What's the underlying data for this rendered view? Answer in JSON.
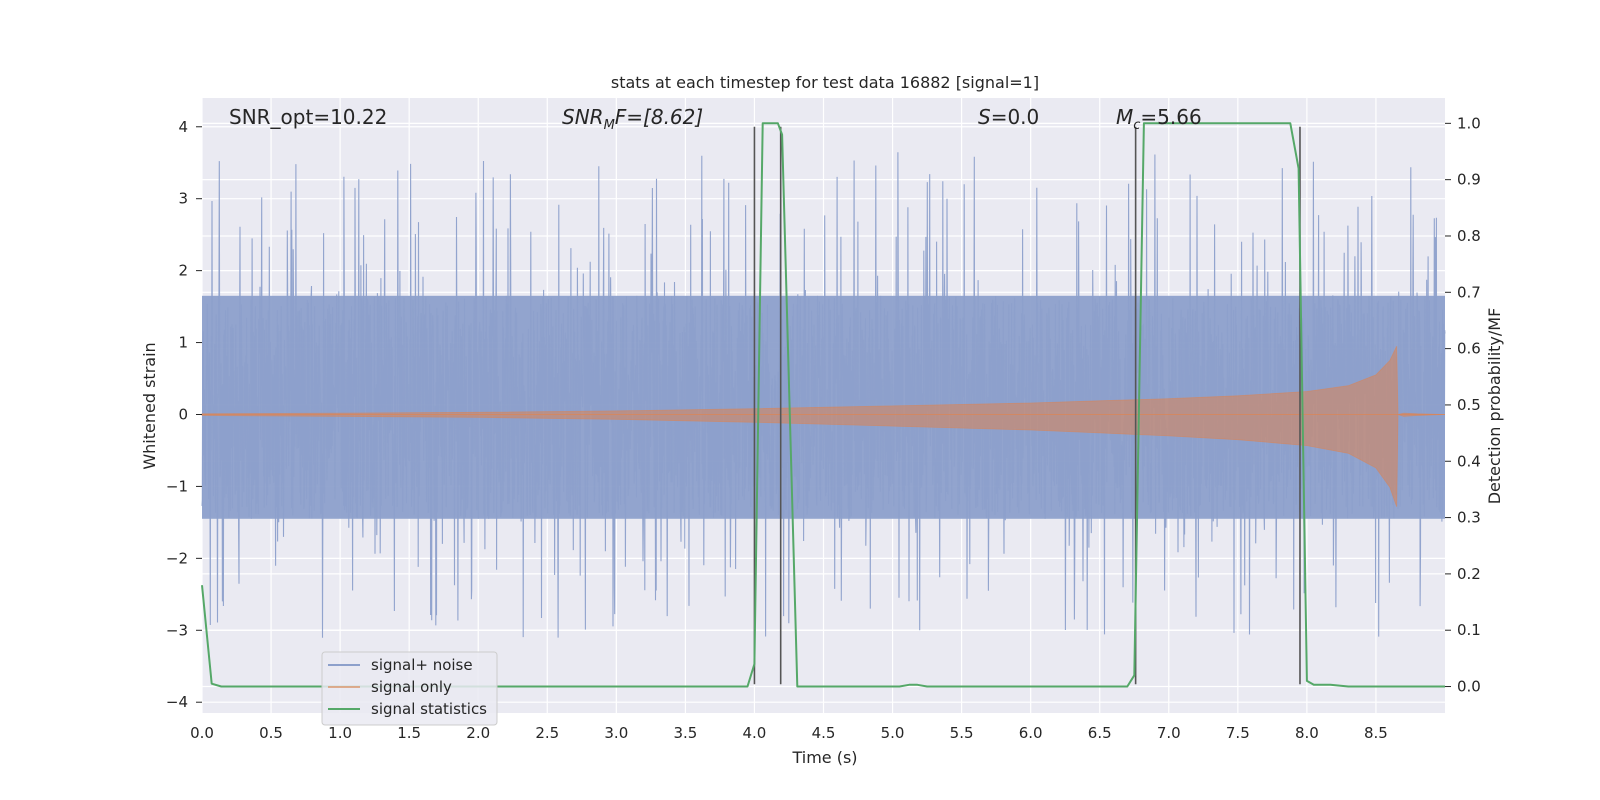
{
  "chart_data": {
    "type": "line",
    "title": "stats at each timestep for test data 16882 [signal=1]",
    "xlabel": "Time (s)",
    "ylabel_left": "Whitened strain",
    "ylabel_right": "Detection probability/MF",
    "xlim": [
      0.0,
      9.0
    ],
    "ylim_left": [
      -4.15,
      4.4
    ],
    "ylim_right": [
      -0.047,
      1.045
    ],
    "xticks": [
      0.0,
      0.5,
      1.0,
      1.5,
      2.0,
      2.5,
      3.0,
      3.5,
      4.0,
      4.5,
      5.0,
      5.5,
      6.0,
      6.5,
      7.0,
      7.5,
      8.0,
      8.5
    ],
    "yticks_left": [
      -4,
      -3,
      -2,
      -1,
      0,
      1,
      2,
      3,
      4
    ],
    "yticks_right": [
      0.0,
      0.1,
      0.2,
      0.3,
      0.4,
      0.5,
      0.6,
      0.7,
      0.8,
      0.9,
      1.0
    ],
    "tick_labels_x": [
      "0.0",
      "0.5",
      "1.0",
      "1.5",
      "2.0",
      "2.5",
      "3.0",
      "3.5",
      "4.0",
      "4.5",
      "5.0",
      "5.5",
      "6.0",
      "6.5",
      "7.0",
      "7.5",
      "8.0",
      "8.5"
    ],
    "tick_labels_left": [
      "−4",
      "−3",
      "−2",
      "−1",
      "0",
      "1",
      "2",
      "3",
      "4"
    ],
    "tick_labels_right": [
      "0.0",
      "0.1",
      "0.2",
      "0.3",
      "0.4",
      "0.5",
      "0.6",
      "0.7",
      "0.8",
      "0.9",
      "1.0"
    ],
    "grid": true,
    "legend_position": "lower-left",
    "annotations": {
      "snr_opt": "SNR_opt=10.22",
      "snr_mf_label": "SNR",
      "snr_mf_sub": "M",
      "snr_mf_rest": "F=[8.62]",
      "s_label": "S",
      "s_rest": "=0.0",
      "mc_label": "M",
      "mc_sub": "c",
      "mc_rest": "=5.66"
    },
    "series": [
      {
        "name": "signal+ noise",
        "color": "#8da0cb",
        "description_values": {
          "x_range": [
            0.0,
            9.0
          ],
          "typical_band": [
            -1.45,
            1.65
          ],
          "peak_max": 4.0,
          "peak_min": -3.4
        }
      },
      {
        "name": "signal only",
        "color": "#dd8452",
        "envelope": {
          "x": [
            0.0,
            1.0,
            2.0,
            3.0,
            4.0,
            5.0,
            6.0,
            6.5,
            7.0,
            7.5,
            8.0,
            8.3,
            8.5,
            8.6,
            8.65,
            8.66,
            8.7,
            8.8,
            9.0
          ],
          "amplitude": [
            0.01,
            0.02,
            0.03,
            0.05,
            0.08,
            0.12,
            0.16,
            0.19,
            0.22,
            0.26,
            0.32,
            0.4,
            0.55,
            0.75,
            0.95,
            0.0,
            0.02,
            0.01,
            0.0
          ]
        }
      },
      {
        "name": "signal statistics",
        "color": "#55a868",
        "x": [
          0.0,
          0.07,
          0.14,
          3.95,
          4.0,
          4.06,
          4.17,
          4.2,
          4.31,
          5.05,
          5.12,
          5.18,
          5.25,
          6.7,
          6.75,
          6.82,
          7.88,
          7.94,
          8.0,
          8.05,
          8.17,
          8.3,
          9.0
        ],
        "y": [
          0.18,
          0.005,
          0.0,
          0.0,
          0.04,
          1.0,
          1.0,
          0.98,
          0.0,
          0.0,
          0.003,
          0.003,
          0.0,
          0.0,
          0.02,
          1.0,
          1.0,
          0.92,
          0.01,
          0.003,
          0.003,
          0.0,
          0.0
        ]
      }
    ],
    "vertical_markers_x": [
      4.0,
      4.19,
      6.76,
      7.95
    ],
    "marker_ylim": [
      -3.75,
      4.0
    ]
  }
}
